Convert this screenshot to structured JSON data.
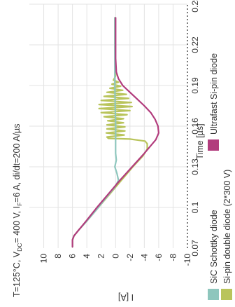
{
  "chart_data": {
    "type": "line",
    "title": "T=125°C, V_DC= 400 V, I_F=6 A, di/dt=200 A/µs",
    "title_parts": {
      "t": "T=125°C, V",
      "dc_sub": "DC",
      "mid": "= 400 V, I",
      "f_sub": "F",
      "end": "=6 A, di/dt=200 A/µs"
    },
    "xlabel": "Time [µs]",
    "ylabel": "I [A]",
    "xlim": [
      0.07,
      0.25
    ],
    "ylim": [
      -10,
      12
    ],
    "xticks": [
      "0.07",
      "0.1",
      "0.13",
      "0.16",
      "0.19",
      "0.22",
      "0.25"
    ],
    "yticks": [
      "-10",
      "-8",
      "-6",
      "-4",
      "-2",
      "0",
      "2",
      "4",
      "6",
      "8",
      "10"
    ],
    "grid": true,
    "legend_position": "bottom",
    "series": [
      {
        "name": "SiC Schottky diode",
        "color": "#8ec6bd",
        "points": [
          [
            0.071,
            6.0
          ],
          [
            0.073,
            6.0
          ],
          [
            0.076,
            6.0
          ],
          [
            0.079,
            5.8
          ],
          [
            0.083,
            5.2
          ],
          [
            0.09,
            4.0
          ],
          [
            0.1,
            2.4
          ],
          [
            0.11,
            0.9
          ],
          [
            0.115,
            0.1
          ],
          [
            0.12,
            -0.4
          ],
          [
            0.125,
            -0.2
          ],
          [
            0.13,
            0.1
          ],
          [
            0.135,
            -0.1
          ],
          [
            0.14,
            0.0
          ],
          [
            0.16,
            0.0
          ],
          [
            0.19,
            0.1
          ],
          [
            0.22,
            0.1
          ],
          [
            0.24,
            0.1
          ]
        ]
      },
      {
        "name": "Si-pin double diode (2*300 V)",
        "color": "#b9c45b",
        "points": [
          [
            0.071,
            6.0
          ],
          [
            0.073,
            6.0
          ],
          [
            0.076,
            6.0
          ],
          [
            0.079,
            5.8
          ],
          [
            0.083,
            5.2
          ],
          [
            0.09,
            4.0
          ],
          [
            0.1,
            2.4
          ],
          [
            0.11,
            0.8
          ],
          [
            0.12,
            -0.8
          ],
          [
            0.13,
            -2.4
          ],
          [
            0.138,
            -3.8
          ],
          [
            0.143,
            -4.4
          ],
          [
            0.147,
            -4.4
          ],
          [
            0.149,
            -4.1
          ],
          [
            0.1505,
            -2.0
          ],
          [
            0.151,
            1.0
          ],
          [
            0.152,
            1.2
          ],
          [
            0.1535,
            -1.2
          ],
          [
            0.155,
            1.3
          ],
          [
            0.1565,
            -1.3
          ],
          [
            0.158,
            1.2
          ],
          [
            0.1595,
            -1.3
          ],
          [
            0.161,
            1.2
          ],
          [
            0.1625,
            -1.1
          ],
          [
            0.164,
            1.1
          ],
          [
            0.1655,
            -1.1
          ],
          [
            0.167,
            1.6
          ],
          [
            0.1685,
            -1.6
          ],
          [
            0.17,
            2.0
          ],
          [
            0.1715,
            -2.0
          ],
          [
            0.173,
            2.3
          ],
          [
            0.1745,
            -2.3
          ],
          [
            0.176,
            2.3
          ],
          [
            0.1775,
            -2.2
          ],
          [
            0.179,
            2.0
          ],
          [
            0.1805,
            -1.8
          ],
          [
            0.182,
            1.6
          ],
          [
            0.1835,
            -1.5
          ],
          [
            0.185,
            1.2
          ],
          [
            0.1865,
            -1.0
          ],
          [
            0.188,
            0.8
          ],
          [
            0.1895,
            -0.7
          ],
          [
            0.191,
            0.5
          ],
          [
            0.1925,
            -0.4
          ],
          [
            0.194,
            0.3
          ],
          [
            0.197,
            0.0
          ],
          [
            0.22,
            0.1
          ],
          [
            0.24,
            0.1
          ]
        ]
      },
      {
        "name": "Ultrafast Si-pin diode",
        "color": "#b23c7d",
        "points": [
          [
            0.071,
            6.0
          ],
          [
            0.073,
            6.0
          ],
          [
            0.076,
            6.0
          ],
          [
            0.079,
            5.8
          ],
          [
            0.083,
            5.2
          ],
          [
            0.09,
            4.1
          ],
          [
            0.1,
            2.6
          ],
          [
            0.11,
            1.0
          ],
          [
            0.12,
            -0.6
          ],
          [
            0.13,
            -2.3
          ],
          [
            0.14,
            -4.0
          ],
          [
            0.15,
            -5.6
          ],
          [
            0.155,
            -6.0
          ],
          [
            0.16,
            -5.9
          ],
          [
            0.165,
            -5.5
          ],
          [
            0.17,
            -4.9
          ],
          [
            0.175,
            -4.0
          ],
          [
            0.18,
            -3.0
          ],
          [
            0.185,
            -2.0
          ],
          [
            0.19,
            -1.0
          ],
          [
            0.195,
            -0.4
          ],
          [
            0.2,
            -0.1
          ],
          [
            0.21,
            0.0
          ],
          [
            0.22,
            0.0
          ],
          [
            0.24,
            0.0
          ]
        ]
      }
    ]
  }
}
